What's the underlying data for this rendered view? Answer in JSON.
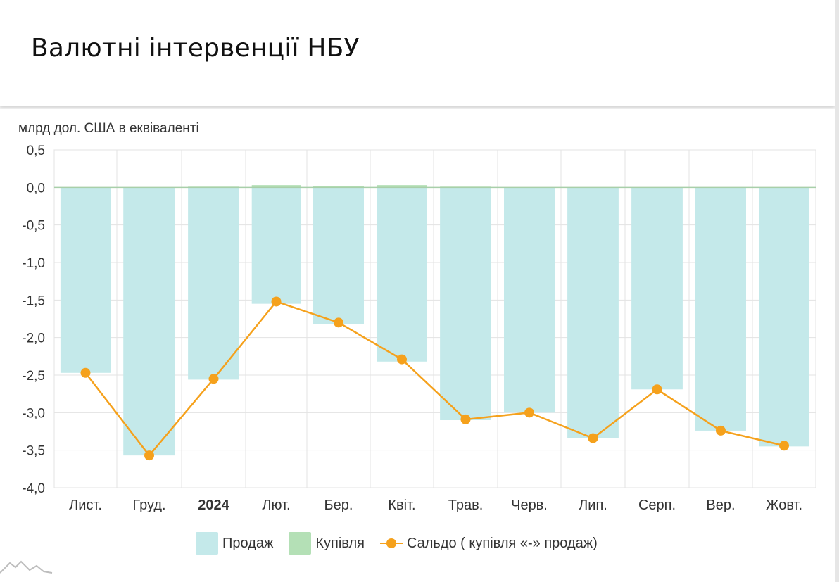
{
  "header": {
    "title": "Валютні інтервенції НБУ"
  },
  "chart_data": {
    "type": "bar",
    "ylabel": "млрд дол. США в еквіваленті",
    "ylim": [
      -4.0,
      0.5
    ],
    "yticks": [
      "0,5",
      "0,0",
      "-0,5",
      "-1,0",
      "-1,5",
      "-2,0",
      "-2,5",
      "-3,0",
      "-3,5",
      "-4,0"
    ],
    "categories": [
      "Лист.",
      "Груд.",
      "2024",
      "Лют.",
      "Бер.",
      "Квіт.",
      "Трав.",
      "Черв.",
      "Лип.",
      "Серп.",
      "Вер.",
      "Жовт."
    ],
    "bold_category": "2024",
    "grid": true,
    "legend_position": "bottom",
    "series": [
      {
        "name": "Продаж",
        "kind": "bar",
        "color": "#c4e9ea",
        "values": [
          -2.47,
          -3.57,
          -2.56,
          -1.55,
          -1.82,
          -2.32,
          -3.1,
          -3.0,
          -3.34,
          -2.69,
          -3.24,
          -3.45
        ]
      },
      {
        "name": "Купівля",
        "kind": "bar",
        "color": "#b4e0b6",
        "values": [
          0.0,
          0.0,
          0.01,
          0.03,
          0.02,
          0.03,
          0.01,
          0.0,
          0.0,
          0.0,
          0.0,
          0.0
        ]
      },
      {
        "name": "Сальдо ( купівля «-» продаж)",
        "kind": "line",
        "color": "#f5a11c",
        "values": [
          -2.47,
          -3.57,
          -2.55,
          -1.52,
          -1.8,
          -2.29,
          -3.09,
          -3.0,
          -3.34,
          -2.69,
          -3.24,
          -3.44
        ]
      }
    ]
  }
}
